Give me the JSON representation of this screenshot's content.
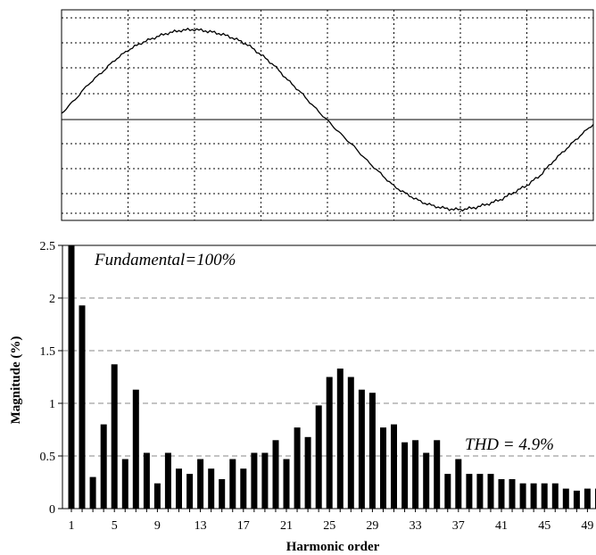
{
  "chart_data": [
    {
      "type": "line",
      "title": "",
      "xlabel": "",
      "ylabel": "",
      "grid": true,
      "x": [
        0,
        0.025,
        0.05,
        0.075,
        0.1,
        0.125,
        0.15,
        0.175,
        0.2,
        0.225,
        0.25,
        0.275,
        0.3,
        0.325,
        0.35,
        0.375,
        0.4,
        0.425,
        0.45,
        0.475,
        0.5,
        0.525,
        0.55,
        0.575,
        0.6,
        0.625,
        0.65,
        0.675,
        0.7,
        0.725,
        0.75,
        0.775,
        0.8,
        0.825,
        0.85,
        0.875,
        0.9,
        0.925,
        0.95,
        0.975,
        1.0
      ],
      "y": [
        0.07,
        0.22,
        0.39,
        0.52,
        0.66,
        0.77,
        0.85,
        0.91,
        0.96,
        0.99,
        1.0,
        0.98,
        0.95,
        0.9,
        0.83,
        0.72,
        0.6,
        0.44,
        0.3,
        0.14,
        -0.01,
        -0.16,
        -0.3,
        -0.46,
        -0.6,
        -0.74,
        -0.83,
        -0.91,
        -0.96,
        -0.99,
        -1.0,
        -0.98,
        -0.94,
        -0.89,
        -0.81,
        -0.73,
        -0.62,
        -0.46,
        -0.32,
        -0.18,
        -0.05
      ],
      "ylim": [
        -1.05,
        1.0
      ]
    },
    {
      "type": "bar",
      "title": "",
      "xlabel": "Harmonic order",
      "ylabel": "Magnitude (%)",
      "categories": [
        "1",
        "2",
        "3",
        "4",
        "5",
        "6",
        "7",
        "8",
        "9",
        "10",
        "11",
        "12",
        "13",
        "14",
        "15",
        "16",
        "17",
        "18",
        "19",
        "20",
        "21",
        "22",
        "23",
        "24",
        "25",
        "26",
        "27",
        "28",
        "29",
        "30",
        "31",
        "32",
        "33",
        "34",
        "35",
        "36",
        "37",
        "38",
        "39",
        "40",
        "41",
        "42",
        "43",
        "44",
        "45",
        "46",
        "47",
        "48",
        "49",
        "50"
      ],
      "x_tick_labels": [
        "1",
        "5",
        "9",
        "13",
        "17",
        "21",
        "25",
        "29",
        "33",
        "37",
        "41",
        "45",
        "49"
      ],
      "values": [
        2.5,
        1.93,
        0.3,
        0.8,
        1.37,
        0.47,
        1.13,
        0.53,
        0.24,
        0.53,
        0.38,
        0.33,
        0.47,
        0.38,
        0.28,
        0.47,
        0.38,
        0.53,
        0.53,
        0.65,
        0.47,
        0.77,
        0.68,
        0.98,
        1.25,
        1.33,
        1.25,
        1.13,
        1.1,
        0.77,
        0.8,
        0.63,
        0.65,
        0.53,
        0.65,
        0.33,
        0.47,
        0.33,
        0.33,
        0.33,
        0.28,
        0.28,
        0.24,
        0.24,
        0.24,
        0.24,
        0.19,
        0.17,
        0.19,
        0.19
      ],
      "y_ticks": [
        "0",
        "0.5",
        "1",
        "1.5",
        "2",
        "2.5"
      ],
      "ylim": [
        0,
        2.5
      ],
      "grid": true,
      "annotations": {
        "fundamental": "Fundamental=100%",
        "thd": "THD = 4.9%"
      }
    }
  ]
}
